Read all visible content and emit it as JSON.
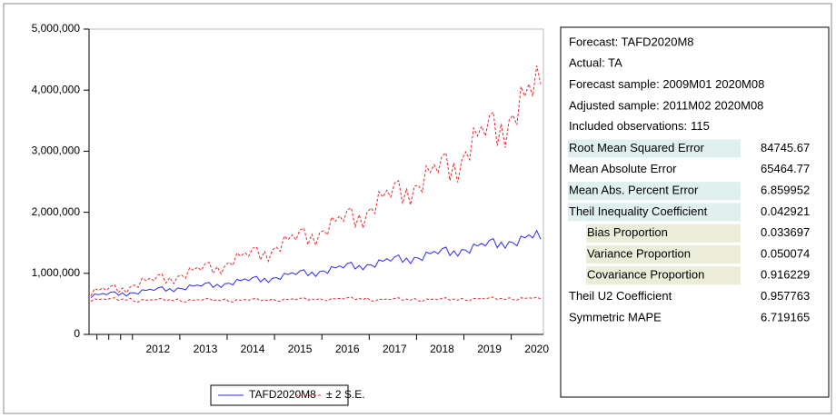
{
  "chart_data": {
    "type": "line",
    "categories": [
      null,
      null,
      null,
      null,
      null,
      null,
      null,
      null,
      null,
      null,
      null,
      null,
      null,
      null,
      null,
      null,
      null,
      "2012",
      null,
      null,
      null,
      null,
      null,
      null,
      null,
      null,
      null,
      null,
      null,
      "2013",
      null,
      null,
      null,
      null,
      null,
      null,
      null,
      null,
      null,
      null,
      null,
      "2014",
      null,
      null,
      null,
      null,
      null,
      null,
      null,
      null,
      null,
      null,
      null,
      "2015",
      null,
      null,
      null,
      null,
      null,
      null,
      null,
      null,
      null,
      null,
      null,
      "2016",
      null,
      null,
      null,
      null,
      null,
      null,
      null,
      null,
      null,
      null,
      null,
      "2017",
      null,
      null,
      null,
      null,
      null,
      null,
      null,
      null,
      null,
      null,
      null,
      "2018",
      null,
      null,
      null,
      null,
      null,
      null,
      null,
      null,
      null,
      null,
      null,
      "2019",
      null,
      null,
      null,
      null,
      null,
      null,
      null,
      null,
      null,
      null,
      null,
      "2020",
      null
    ],
    "series": [
      {
        "name": "TAFD2020M8",
        "color": "#2b2bf0",
        "values": [
          600000,
          660000,
          650000,
          670000,
          650000,
          690000,
          700000,
          640000,
          680000,
          630000,
          680000,
          680000,
          660000,
          730000,
          720000,
          740000,
          720000,
          760000,
          780000,
          710000,
          750000,
          700000,
          760000,
          750000,
          730000,
          810000,
          790000,
          810000,
          790000,
          840000,
          850000,
          770000,
          820000,
          770000,
          830000,
          840000,
          810000,
          900000,
          880000,
          910000,
          880000,
          930000,
          950000,
          860000,
          920000,
          850000,
          920000,
          930000,
          900000,
          1000000,
          980000,
          1010000,
          980000,
          1040000,
          1060000,
          960000,
          1020000,
          950000,
          1030000,
          1040000,
          1000000,
          1110000,
          1090000,
          1120000,
          1090000,
          1160000,
          1180000,
          1070000,
          1130000,
          1060000,
          1140000,
          1140000,
          1100000,
          1220000,
          1200000,
          1240000,
          1200000,
          1270000,
          1300000,
          1180000,
          1250000,
          1160000,
          1260000,
          1250000,
          1210000,
          1350000,
          1320000,
          1360000,
          1320000,
          1400000,
          1430000,
          1290000,
          1370000,
          1280000,
          1390000,
          1380000,
          1330000,
          1480000,
          1450000,
          1490000,
          1450000,
          1540000,
          1570000,
          1420000,
          1510000,
          1410000,
          1520000,
          1500000,
          1450000,
          1610000,
          1580000,
          1630000,
          1580000,
          1700000,
          1560000
        ]
      },
      {
        "name": "± 2 S.E.",
        "color": "#e8262b",
        "upper": [
          630000,
          750000,
          720000,
          760000,
          720000,
          790000,
          810000,
          680000,
          760000,
          680000,
          780000,
          810000,
          770000,
          920000,
          880000,
          920000,
          880000,
          970000,
          990000,
          840000,
          930000,
          830000,
          950000,
          970000,
          920000,
          1090000,
          1050000,
          1100000,
          1050000,
          1160000,
          1180000,
          1000000,
          1110000,
          990000,
          1130000,
          1180000,
          1130000,
          1330000,
          1280000,
          1340000,
          1280000,
          1410000,
          1430000,
          1220000,
          1360000,
          1200000,
          1380000,
          1430000,
          1360000,
          1610000,
          1550000,
          1630000,
          1550000,
          1710000,
          1740000,
          1470000,
          1640000,
          1460000,
          1670000,
          1700000,
          1630000,
          1920000,
          1850000,
          1940000,
          1850000,
          2040000,
          2070000,
          1760000,
          1960000,
          1740000,
          2000000,
          2070000,
          1980000,
          2340000,
          2250000,
          2360000,
          2250000,
          2480000,
          2520000,
          2140000,
          2390000,
          2120000,
          2430000,
          2440000,
          2330000,
          2760000,
          2650000,
          2780000,
          2650000,
          2920000,
          2970000,
          2520000,
          2810000,
          2490000,
          2860000,
          2990000,
          2860000,
          3380000,
          3250000,
          3410000,
          3250000,
          3580000,
          3640000,
          3090000,
          3450000,
          3060000,
          3510000,
          3590000,
          3430000,
          4060000,
          3900000,
          4100000,
          3900000,
          4400000,
          4100000
        ],
        "lower": [
          540000,
          580000,
          570000,
          580000,
          570000,
          590000,
          600000,
          560000,
          580000,
          560000,
          590000,
          540000,
          530000,
          570000,
          560000,
          570000,
          560000,
          580000,
          590000,
          550000,
          570000,
          550000,
          580000,
          540000,
          530000,
          570000,
          560000,
          570000,
          560000,
          580000,
          590000,
          550000,
          570000,
          550000,
          580000,
          540000,
          530000,
          570000,
          560000,
          570000,
          560000,
          580000,
          590000,
          550000,
          570000,
          550000,
          580000,
          550000,
          540000,
          580000,
          570000,
          580000,
          570000,
          590000,
          600000,
          560000,
          580000,
          560000,
          590000,
          560000,
          550000,
          590000,
          580000,
          590000,
          580000,
          600000,
          610000,
          570000,
          590000,
          570000,
          600000,
          550000,
          540000,
          580000,
          570000,
          580000,
          570000,
          590000,
          600000,
          560000,
          580000,
          560000,
          590000,
          550000,
          540000,
          580000,
          570000,
          580000,
          570000,
          590000,
          600000,
          560000,
          580000,
          560000,
          590000,
          560000,
          550000,
          590000,
          580000,
          590000,
          580000,
          600000,
          610000,
          570000,
          590000,
          570000,
          600000,
          570000,
          560000,
          600000,
          590000,
          600000,
          590000,
          610000,
          580000
        ]
      }
    ],
    "ylim": [
      0,
      5000000
    ],
    "yticks": [
      0,
      {
        "value": 1000000,
        "label": "1,000,000"
      },
      {
        "value": 2000000,
        "label": "2,000,000"
      },
      {
        "value": 3000000,
        "label": "3,000,000"
      },
      {
        "value": 4000000,
        "label": "4,000,000"
      },
      {
        "value": 5000000,
        "label": "5,000,000"
      }
    ],
    "legend": "bottom"
  },
  "forecast_stats": {
    "header": [
      "Forecast: TAFD2020M8",
      "Actual: TA",
      "Forecast sample: 2009M01 2020M08",
      "Adjusted sample: 2011M02 2020M08"
    ],
    "included_observations": {
      "label": "Included observations:",
      "value": 115
    },
    "rows": [
      {
        "label": "Root Mean Squared Error",
        "value": 84745.67
      },
      {
        "label": "Mean Absolute Error",
        "value": 65464.77
      },
      {
        "label": "Mean Abs. Percent Error",
        "value": 6.859952
      },
      {
        "label": "Theil Inequality Coefficient",
        "value": 0.042921
      },
      {
        "label": "Bias Proportion",
        "value": 0.033697
      },
      {
        "label": "Variance Proportion",
        "value": 0.050074
      },
      {
        "label": "Covariance Proportion",
        "value": 0.916229
      },
      {
        "label": "Theil U2 Coefficient",
        "value": 0.957763
      },
      {
        "label": "Symmetric MAPE",
        "value": 6.719165
      }
    ]
  }
}
